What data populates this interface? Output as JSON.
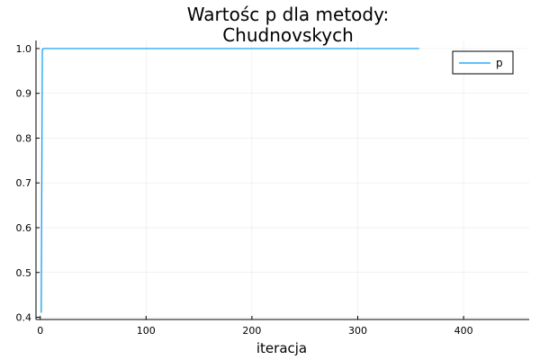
{
  "chart_data": {
    "type": "line",
    "title": [
      "Wartośc p dla metody:",
      "Chudnovskych"
    ],
    "xlabel": "iteracja",
    "ylabel": "",
    "xlim": [
      -4,
      462
    ],
    "ylim": [
      0.395,
      1.018
    ],
    "xticks": [
      0,
      100,
      200,
      300,
      400
    ],
    "xtick_labels": [
      "0",
      "100",
      "200",
      "300",
      "400"
    ],
    "yticks": [
      0.4,
      0.5,
      0.6,
      0.7,
      0.8,
      0.9,
      1.0
    ],
    "ytick_labels": [
      "0.4",
      "0.5",
      "0.6",
      "0.7",
      "0.8",
      "0.9",
      "1.0"
    ],
    "grid": true,
    "legend_position": "top-right",
    "series": [
      {
        "name": "p",
        "color": "#009af9",
        "x": [
          1,
          2,
          3,
          4,
          5,
          10,
          50,
          100,
          150,
          200,
          250,
          300,
          358
        ],
        "y": [
          0.41,
          0.998,
          0.9999,
          1.0,
          1.0,
          1.0,
          1.0,
          1.0,
          1.0,
          1.0,
          1.0,
          1.0,
          1.0
        ]
      }
    ]
  }
}
